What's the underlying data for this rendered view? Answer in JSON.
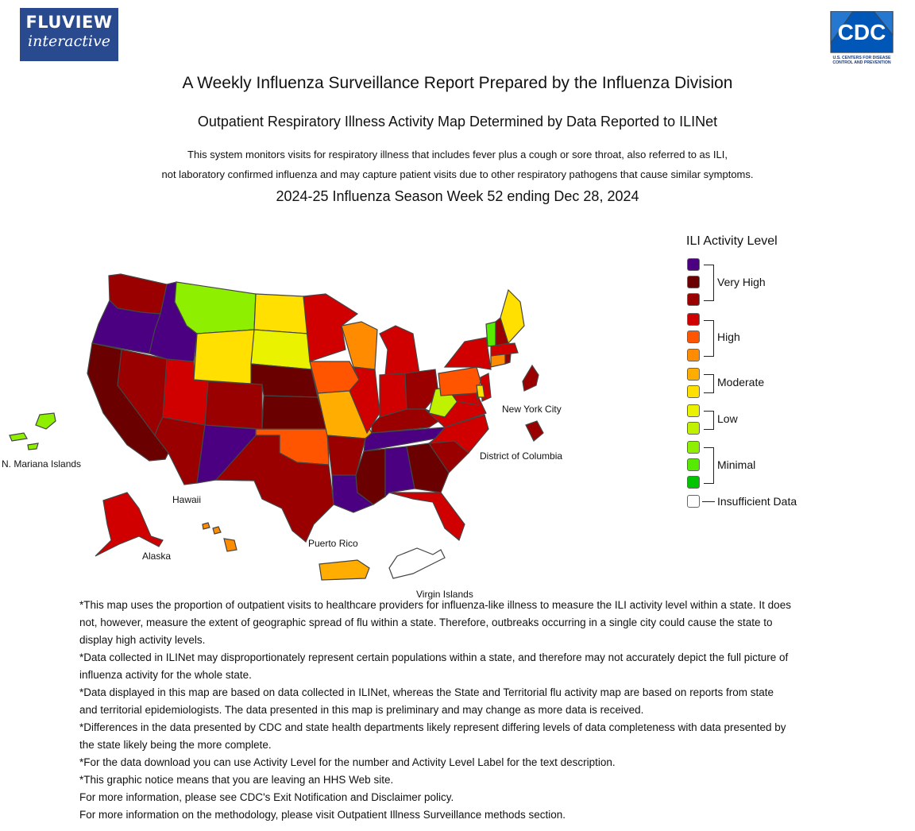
{
  "logo": {
    "fluview_line1": "FLUVIEW",
    "fluview_line2": "interactive",
    "cdc": "CDC",
    "cdc_sub1": "U.S. CENTERS FOR DISEASE",
    "cdc_sub2": "CONTROL AND PREVENTION"
  },
  "header": {
    "title": "A Weekly Influenza Surveillance Report Prepared by the Influenza Division",
    "subtitle": "Outpatient Respiratory Illness Activity Map Determined by Data Reported to ILINet",
    "desc_line1": "This system monitors visits for respiratory illness that includes fever plus a cough or sore throat, also referred to as ILI,",
    "desc_line2": "not laboratory confirmed influenza and may capture patient visits due to other respiratory pathogens that cause similar symptoms.",
    "week": "2024-25 Influenza Season Week 52 ending Dec 28, 2024"
  },
  "legend": {
    "title": "ILI Activity Level",
    "levels": [
      {
        "level": 13,
        "color": "#4b0082"
      },
      {
        "level": 12,
        "color": "#6b0000"
      },
      {
        "level": 11,
        "color": "#9b0000"
      },
      {
        "level": 10,
        "color": "#d00000"
      },
      {
        "level": 9,
        "color": "#ff5500"
      },
      {
        "level": 8,
        "color": "#ff8c00"
      },
      {
        "level": 7,
        "color": "#ffad00"
      },
      {
        "level": 6,
        "color": "#ffe000"
      },
      {
        "level": 5,
        "color": "#eaf200"
      },
      {
        "level": 4,
        "color": "#c0f200"
      },
      {
        "level": 3,
        "color": "#8ef000"
      },
      {
        "level": 2,
        "color": "#55ea00"
      },
      {
        "level": 1,
        "color": "#00c400"
      },
      {
        "level": 0,
        "color": "#ffffff"
      }
    ],
    "groups": [
      "Very High",
      "High",
      "Moderate",
      "Low",
      "Minimal"
    ],
    "insufficient": "Insufficient Data"
  },
  "map_labels": {
    "nmi": "N. Mariana Islands",
    "hawaii": "Hawaii",
    "alaska": "Alaska",
    "puerto_rico": "Puerto Rico",
    "virgin_islands": "Virgin Islands",
    "nyc": "New York City",
    "dc": "District of Columbia"
  },
  "states": {
    "WA": "#9b0000",
    "OR": "#4b0082",
    "CA": "#6b0000",
    "ID": "#4b0082",
    "NV": "#9b0000",
    "MT": "#8ef000",
    "WY": "#ffe000",
    "UT": "#d00000",
    "AZ": "#9b0000",
    "CO": "#9b0000",
    "NM": "#4b0082",
    "ND": "#ffe000",
    "SD": "#eaf200",
    "NE": "#6b0000",
    "KS": "#6b0000",
    "OK": "#ff5500",
    "TX": "#9b0000",
    "MN": "#d00000",
    "IA": "#ff5500",
    "MO": "#ffad00",
    "AR": "#9b0000",
    "LA": "#4b0082",
    "WI": "#ff8c00",
    "IL": "#d00000",
    "MI": "#d00000",
    "IN": "#d00000",
    "OH": "#9b0000",
    "KY": "#9b0000",
    "TN": "#4b0082",
    "MS": "#6b0000",
    "AL": "#4b0082",
    "GA": "#6b0000",
    "FL": "#d00000",
    "SC": "#9b0000",
    "NC": "#d00000",
    "VA": "#d00000",
    "WV": "#c0f200",
    "PA": "#ff5500",
    "NY": "#d00000",
    "NJ": "#d00000",
    "DE": "#ffe000",
    "MD": "#d00000",
    "CT": "#ff8c00",
    "RI": "#9b0000",
    "MA": "#d00000",
    "VT": "#55ea00",
    "NH": "#9b0000",
    "ME": "#ffe000",
    "AK": "#d00000",
    "HI": "#ff8c00",
    "PR": "#ffad00",
    "VI": "#ffffff",
    "NMI": "#8ef000",
    "NYC": "#9b0000",
    "DC": "#9b0000"
  },
  "notes": [
    "*This map uses the proportion of outpatient visits to healthcare providers for influenza-like illness to measure the ILI activity level within a state. It does not, however, measure the extent of geographic spread of flu within a state. Therefore, outbreaks occurring in a single city could cause the state to display high activity levels.",
    "*Data collected in ILINet may disproportionately represent certain populations within a state, and therefore may not accurately depict the full picture of influenza activity for the whole state.",
    "*Data displayed in this map are based on data collected in ILINet, whereas the State and Territorial flu activity map are based on reports from state and territorial epidemiologists. The data presented in this map is preliminary and may change as more data is received.",
    "*Differences in the data presented by CDC and state health departments likely represent differing levels of data completeness with data presented by the state likely being the more complete.",
    "*For the data download you can use Activity Level for the number and Activity Level Label for the text description.",
    "*This graphic notice means that you are leaving an HHS Web site.",
    "For more information, please see CDC's Exit Notification and Disclaimer policy.",
    "For more information on the methodology, please visit Outpatient Illness Surveillance methods section."
  ]
}
